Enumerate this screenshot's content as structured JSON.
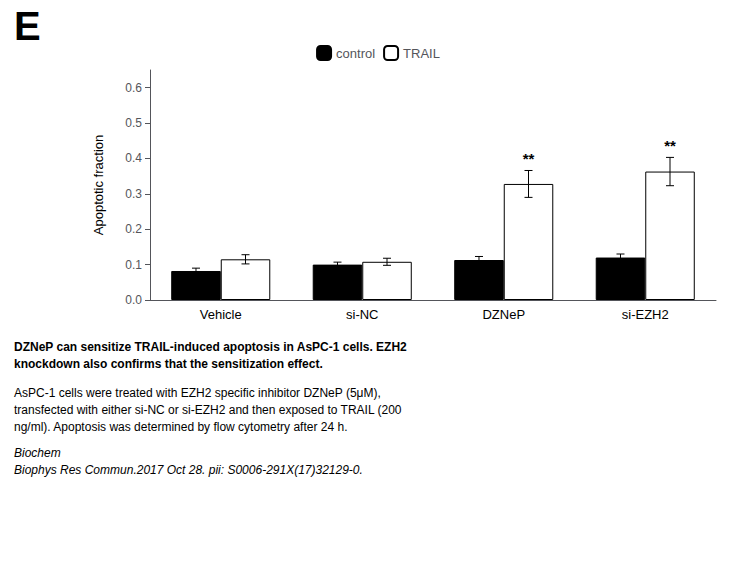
{
  "chart_data": {
    "type": "bar",
    "panel_label": "E",
    "categories": [
      "Vehicle",
      "si-NC",
      "DZNeP",
      "si-EZH2"
    ],
    "series": [
      {
        "name": "control",
        "color": "#000000",
        "values": [
          0.082,
          0.1,
          0.113,
          0.12
        ],
        "errors": [
          0.008,
          0.007,
          0.01,
          0.01
        ]
      },
      {
        "name": "TRAIL",
        "color": "#ffffff",
        "values": [
          0.115,
          0.108,
          0.328,
          0.363
        ],
        "errors": [
          0.013,
          0.01,
          0.038,
          0.04
        ]
      }
    ],
    "ylabel": "Apoptotic fraction",
    "ylim": [
      0,
      0.65
    ],
    "yticks": [
      {
        "value": 0,
        "label": "0.0"
      },
      0.1,
      0.2,
      0.3,
      0.4,
      0.5,
      0.6
    ],
    "grid": false,
    "legend": "top",
    "annotations": [
      {
        "text": "**",
        "category": "DZNeP",
        "series": "TRAIL"
      },
      {
        "text": "**",
        "category": "si-EZH2",
        "series": "TRAIL"
      }
    ],
    "caption_title": "DZNeP can sensitize TRAIL-induced apoptosis in AsPC-1 cells. EZH2\nknockdown also confirms that the sensitization effect.",
    "caption": "AsPC-1 cells were treated with EZH2 specific inhibitor DZNeP (5μM),\ntransfected with either si-NC or si-EZH2 and then exposed to TRAIL (200\nng/ml). Apoptosis was determined by flow cytometry after 24 h. ",
    "citation": "Biochem\nBiophys Res Commun.2017 Oct 28. pii: S0006-291X(17)32129-0."
  }
}
